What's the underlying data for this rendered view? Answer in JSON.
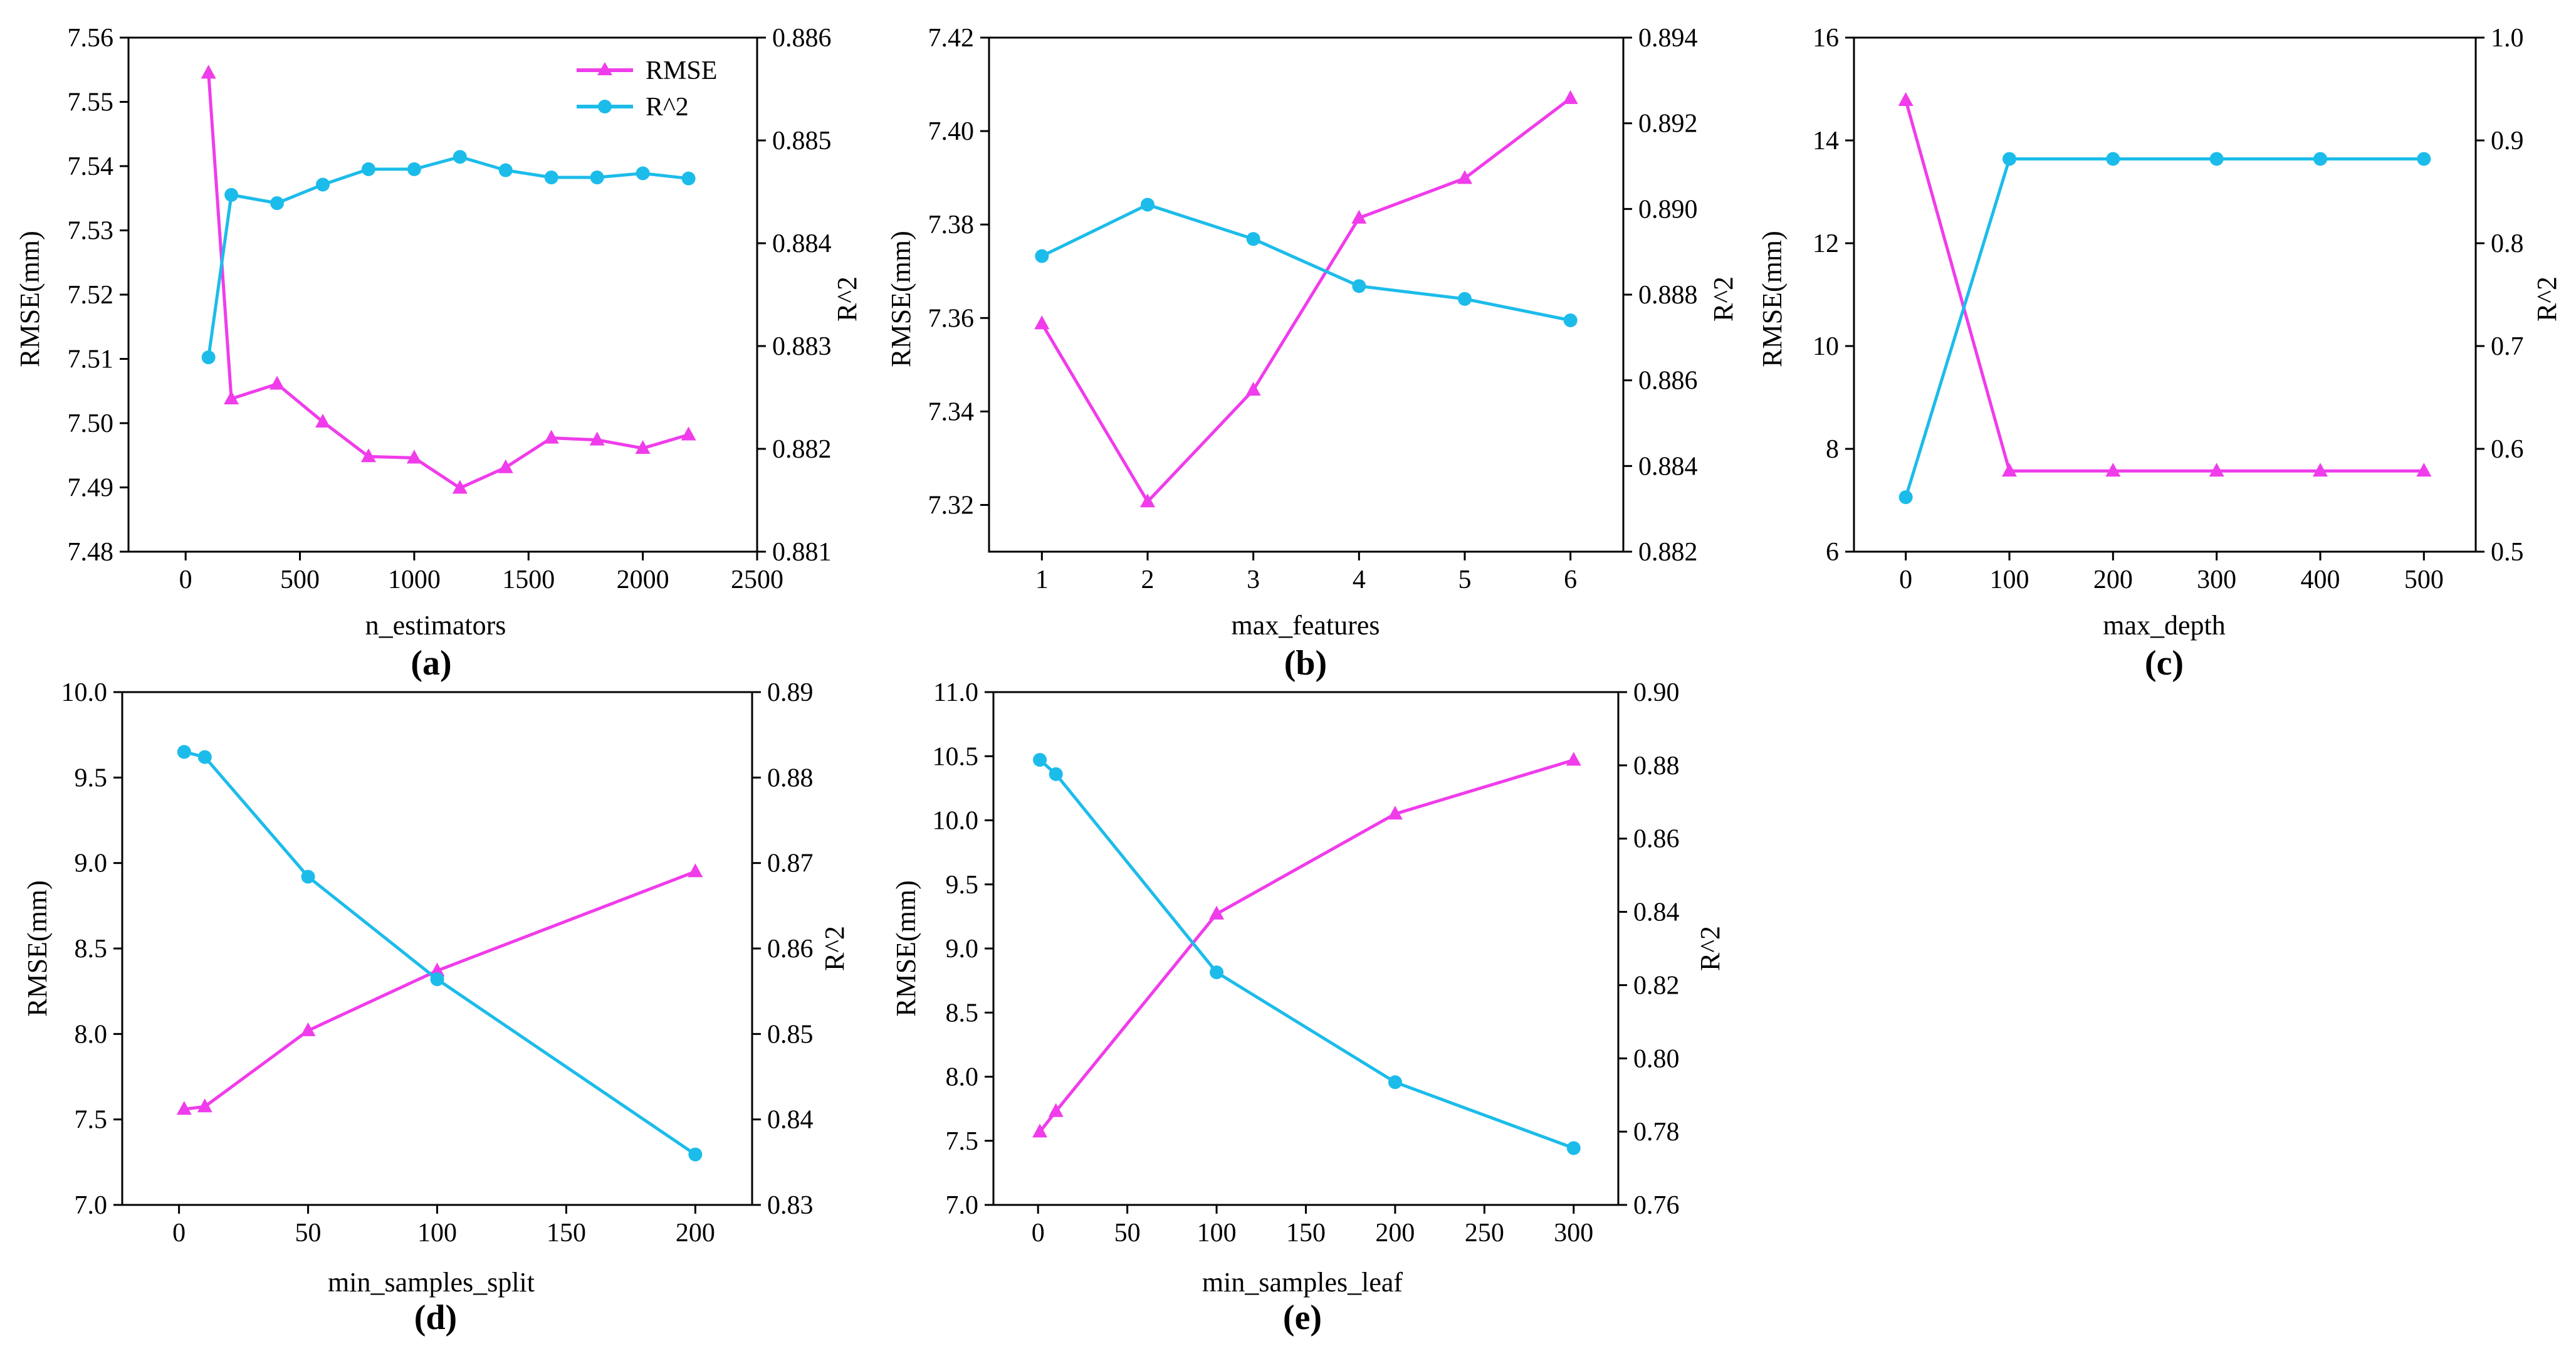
{
  "colors": {
    "rmse": "#F03CEB",
    "r2": "#1CBCEA",
    "axis": "#000000"
  },
  "legend": {
    "rmse_label": "RMSE",
    "r2_label": "R^2",
    "placement": "top-right of panel (a)"
  },
  "chart_data": [
    {
      "type": "line",
      "panel": "(a)",
      "xlabel": "n_estimators",
      "ylabel_left": "RMSE(mm)",
      "ylabel_right": "R^2",
      "xlim": [
        -250,
        2500
      ],
      "xticks": [
        0,
        500,
        1000,
        1500,
        2000,
        2500
      ],
      "xtick_labels": [
        "0",
        "500",
        "1000",
        "1500",
        "2000",
        "2500"
      ],
      "ylim_left": [
        7.48,
        7.56
      ],
      "yticks_left": [
        7.48,
        7.49,
        7.5,
        7.51,
        7.52,
        7.53,
        7.54,
        7.55,
        7.56
      ],
      "ytick_labels_left": [
        "7.48",
        "7.49",
        "7.50",
        "7.51",
        "7.52",
        "7.53",
        "7.54",
        "7.55",
        "7.56"
      ],
      "ylim_right": [
        0.881,
        0.886
      ],
      "yticks_right": [
        0.881,
        0.882,
        0.883,
        0.884,
        0.885,
        0.886
      ],
      "ytick_labels_right": [
        "0.881",
        "0.882",
        "0.883",
        "0.884",
        "0.885",
        "0.886"
      ],
      "x": [
        100,
        200,
        400,
        600,
        800,
        1000,
        1200,
        1400,
        1600,
        1800,
        2000,
        2200
      ],
      "series": [
        {
          "name": "RMSE",
          "axis": "left",
          "marker": "triangle",
          "values": [
            7.5545,
            7.5038,
            7.5061,
            7.5002,
            7.4948,
            7.4946,
            7.4899,
            7.4931,
            7.4977,
            7.4974,
            7.4961,
            7.4982
          ]
        },
        {
          "name": "R^2",
          "axis": "right",
          "marker": "circle",
          "values": [
            0.88289,
            0.88447,
            0.88439,
            0.88457,
            0.88472,
            0.88472,
            0.88484,
            0.88471,
            0.88464,
            0.88464,
            0.88468,
            0.88463
          ]
        }
      ]
    },
    {
      "type": "line",
      "panel": "(b)",
      "xlabel": "max_features",
      "ylabel_left": "RMSE(mm)",
      "ylabel_right": "R^2",
      "xlim": [
        0.5,
        6.5
      ],
      "xticks": [
        1,
        2,
        3,
        4,
        5,
        6
      ],
      "xtick_labels": [
        "1",
        "2",
        "3",
        "4",
        "5",
        "6"
      ],
      "ylim_left": [
        7.31,
        7.42
      ],
      "yticks_left": [
        7.32,
        7.34,
        7.36,
        7.38,
        7.4,
        7.42
      ],
      "ytick_labels_left": [
        "7.32",
        "7.34",
        "7.36",
        "7.38",
        "7.40",
        "7.42"
      ],
      "ylim_right": [
        0.882,
        0.894
      ],
      "yticks_right": [
        0.882,
        0.884,
        0.886,
        0.888,
        0.89,
        0.892,
        0.894
      ],
      "ytick_labels_right": [
        "0.882",
        "0.884",
        "0.886",
        "0.888",
        "0.890",
        "0.892",
        "0.894"
      ],
      "x": [
        1,
        2,
        3,
        4,
        5,
        6
      ],
      "series": [
        {
          "name": "RMSE",
          "axis": "left",
          "marker": "triangle",
          "values": [
            7.3588,
            7.3207,
            7.3446,
            7.3814,
            7.3899,
            7.407
          ]
        },
        {
          "name": "R^2",
          "axis": "right",
          "marker": "circle",
          "values": [
            0.8889,
            0.8901,
            0.8893,
            0.8882,
            0.8879,
            0.8874
          ]
        }
      ]
    },
    {
      "type": "line",
      "panel": "(c)",
      "xlabel": "max_depth",
      "ylabel_left": "RMSE(mm)",
      "ylabel_right": "R^2",
      "xlim": [
        -50,
        550
      ],
      "xticks": [
        0,
        100,
        200,
        300,
        400,
        500
      ],
      "xtick_labels": [
        "0",
        "100",
        "200",
        "300",
        "400",
        "500"
      ],
      "ylim_left": [
        6,
        16
      ],
      "yticks_left": [
        6,
        8,
        10,
        12,
        14,
        16
      ],
      "ytick_labels_left": [
        "6",
        "8",
        "10",
        "12",
        "14",
        "16"
      ],
      "ylim_right": [
        0.5,
        1.0
      ],
      "yticks_right": [
        0.5,
        0.6,
        0.7,
        0.8,
        0.9,
        1.0
      ],
      "ytick_labels_right": [
        "0.5",
        "0.6",
        "0.7",
        "0.8",
        "0.9",
        "1.0"
      ],
      "x": [
        0,
        100,
        200,
        300,
        400,
        500
      ],
      "series": [
        {
          "name": "RMSE",
          "axis": "left",
          "marker": "triangle",
          "values": [
            14.78,
            7.57,
            7.57,
            7.57,
            7.57,
            7.57
          ]
        },
        {
          "name": "R^2",
          "axis": "right",
          "marker": "circle",
          "values": [
            0.553,
            0.882,
            0.882,
            0.882,
            0.882,
            0.882
          ]
        }
      ]
    },
    {
      "type": "line",
      "panel": "(d)",
      "xlabel": "min_samples_split",
      "ylabel_left": "RMSE(mm)",
      "ylabel_right": "R^2",
      "xlim": [
        -22,
        222
      ],
      "xticks": [
        0,
        50,
        100,
        150,
        200
      ],
      "xtick_labels": [
        "0",
        "50",
        "100",
        "150",
        "200"
      ],
      "ylim_left": [
        7.0,
        10.0
      ],
      "yticks_left": [
        7.0,
        7.5,
        8.0,
        8.5,
        9.0,
        9.5,
        10.0
      ],
      "ytick_labels_left": [
        "7.0",
        "7.5",
        "8.0",
        "8.5",
        "9.0",
        "9.5",
        "10.0"
      ],
      "ylim_right": [
        0.83,
        0.89
      ],
      "yticks_right": [
        0.83,
        0.84,
        0.85,
        0.86,
        0.87,
        0.88,
        0.89
      ],
      "ytick_labels_right": [
        "0.83",
        "0.84",
        "0.85",
        "0.86",
        "0.87",
        "0.88",
        "0.89"
      ],
      "x": [
        2,
        10,
        50,
        100,
        200
      ],
      "series": [
        {
          "name": "RMSE",
          "axis": "left",
          "marker": "triangle",
          "values": [
            7.56,
            7.575,
            8.02,
            8.37,
            8.95
          ]
        },
        {
          "name": "R^2",
          "axis": "right",
          "marker": "circle",
          "values": [
            0.883,
            0.8824,
            0.8684,
            0.8564,
            0.8359
          ]
        }
      ]
    },
    {
      "type": "line",
      "panel": "(e)",
      "xlabel": "min_samples_leaf",
      "ylabel_left": "RMSE(mm)",
      "ylabel_right": "R^2",
      "xlim": [
        -25,
        325
      ],
      "xticks": [
        0,
        50,
        100,
        150,
        200,
        250,
        300
      ],
      "xtick_labels": [
        "0",
        "50",
        "100",
        "150",
        "200",
        "250",
        "300"
      ],
      "ylim_left": [
        7.0,
        11.0
      ],
      "yticks_left": [
        7.0,
        7.5,
        8.0,
        8.5,
        9.0,
        9.5,
        10.0,
        10.5,
        11.0
      ],
      "ytick_labels_left": [
        "7.0",
        "7.5",
        "8.0",
        "8.5",
        "9.0",
        "9.5",
        "10.0",
        "10.5",
        "11.0"
      ],
      "ylim_right": [
        0.76,
        0.9
      ],
      "yticks_right": [
        0.76,
        0.78,
        0.8,
        0.82,
        0.84,
        0.86,
        0.88,
        0.9
      ],
      "ytick_labels_right": [
        "0.76",
        "0.78",
        "0.80",
        "0.82",
        "0.84",
        "0.86",
        "0.88",
        "0.90"
      ],
      "x": [
        1,
        10,
        100,
        200,
        300
      ],
      "series": [
        {
          "name": "RMSE",
          "axis": "left",
          "marker": "triangle",
          "values": [
            7.57,
            7.73,
            9.27,
            10.05,
            10.47
          ]
        },
        {
          "name": "R^2",
          "axis": "right",
          "marker": "circle",
          "values": [
            0.8815,
            0.8776,
            0.8235,
            0.7935,
            0.7755
          ]
        }
      ]
    }
  ]
}
